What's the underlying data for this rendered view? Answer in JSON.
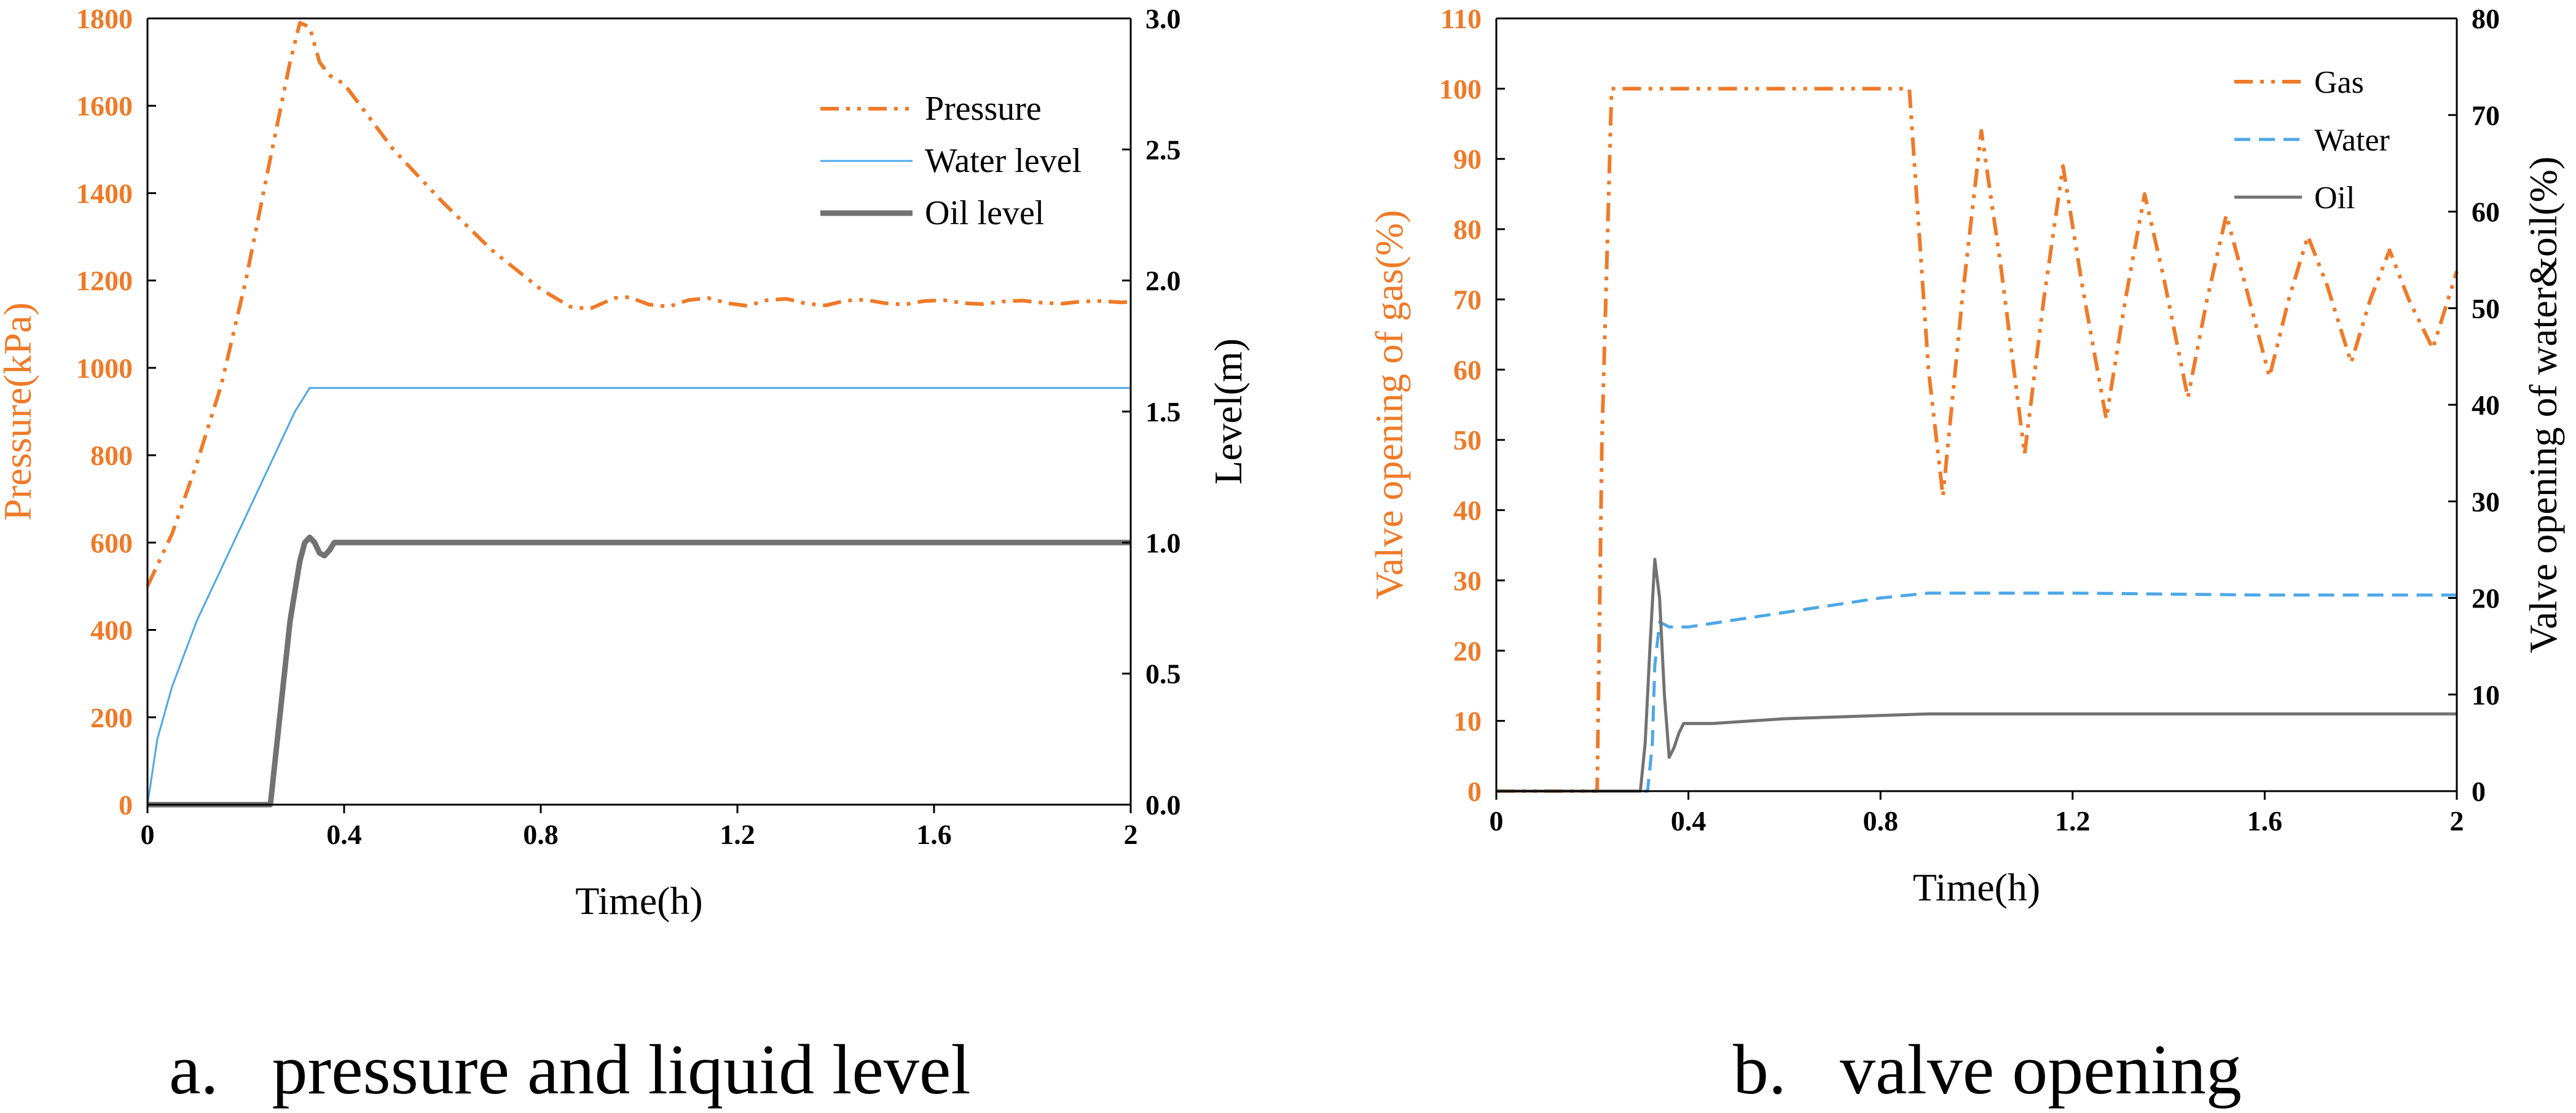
{
  "colors": {
    "orange": "#EF7A28",
    "blue": "#4DA7E8",
    "gray": "#727272",
    "axis": "#000000"
  },
  "chart_data": [
    {
      "id": "panel-a",
      "type": "line",
      "caption": "a.   pressure and liquid level",
      "xlabel": "Time(h)",
      "ylabel_left": "Pressure(kPa)",
      "ylabel_right": "Level(m)",
      "xlim": [
        0,
        2
      ],
      "ylim_left": [
        0,
        1800
      ],
      "ylim_right": [
        0,
        3.0
      ],
      "xticks": [
        0,
        0.4,
        0.8,
        1.2,
        1.6,
        2
      ],
      "xtick_labels": [
        "0",
        "0.4",
        "0.8",
        "1.2",
        "1.6",
        "2"
      ],
      "yticks_left": [
        0,
        200,
        400,
        600,
        800,
        1000,
        1200,
        1400,
        1600,
        1800
      ],
      "ytick_labels_left": [
        "0",
        "200",
        "400",
        "600",
        "800",
        "1000",
        "1200",
        "1400",
        "1600",
        "1800"
      ],
      "yticks_right": [
        0,
        0.5,
        1.0,
        1.5,
        2.0,
        2.5,
        3.0
      ],
      "ytick_labels_right": [
        "0.0",
        "0.5",
        "1.0",
        "1.5",
        "2.0",
        "2.5",
        "3.0"
      ],
      "legend_position": "top-right",
      "series": [
        {
          "name": "Pressure",
          "axis": "left",
          "color": "#EF7A28",
          "style": "dashdotdot",
          "width": 6,
          "x": [
            0,
            0.05,
            0.1,
            0.15,
            0.2,
            0.25,
            0.29,
            0.31,
            0.33,
            0.35,
            0.37,
            0.4,
            0.5,
            0.6,
            0.7,
            0.8,
            0.86,
            0.9,
            0.95,
            0.98,
            1.02,
            1.06,
            1.1,
            1.14,
            1.18,
            1.22,
            1.26,
            1.3,
            1.34,
            1.38,
            1.42,
            1.46,
            1.5,
            1.54,
            1.58,
            1.62,
            1.66,
            1.7,
            1.74,
            1.78,
            1.82,
            1.86,
            1.9,
            1.94,
            1.98,
            2.0
          ],
          "values": [
            500,
            620,
            780,
            960,
            1200,
            1480,
            1700,
            1790,
            1780,
            1700,
            1670,
            1650,
            1500,
            1380,
            1270,
            1180,
            1140,
            1135,
            1160,
            1162,
            1145,
            1140,
            1155,
            1160,
            1148,
            1142,
            1155,
            1158,
            1147,
            1143,
            1154,
            1156,
            1148,
            1145,
            1153,
            1155,
            1148,
            1146,
            1152,
            1154,
            1149,
            1147,
            1152,
            1153,
            1150,
            1151
          ]
        },
        {
          "name": "Water level",
          "axis": "right",
          "color": "#4DA7E8",
          "style": "solid",
          "width": 3,
          "x": [
            0,
            0.02,
            0.05,
            0.1,
            0.15,
            0.2,
            0.25,
            0.3,
            0.33,
            0.35,
            0.4,
            0.6,
            0.8,
            1.0,
            1.2,
            1.4,
            1.6,
            1.8,
            2.0
          ],
          "values": [
            0,
            0.25,
            0.45,
            0.7,
            0.9,
            1.1,
            1.3,
            1.5,
            1.59,
            1.59,
            1.59,
            1.59,
            1.59,
            1.59,
            1.59,
            1.59,
            1.59,
            1.59,
            1.59
          ]
        },
        {
          "name": "Oil level",
          "axis": "right",
          "color": "#727272",
          "style": "solid",
          "width": 9,
          "x": [
            0,
            0.24,
            0.25,
            0.27,
            0.29,
            0.31,
            0.32,
            0.33,
            0.34,
            0.35,
            0.36,
            0.37,
            0.38,
            0.4,
            0.5,
            0.8,
            1.2,
            1.6,
            2.0
          ],
          "values": [
            0,
            0,
            0,
            0.35,
            0.7,
            0.93,
            1.0,
            1.02,
            1.0,
            0.96,
            0.95,
            0.97,
            1.0,
            1.0,
            1.0,
            1.0,
            1.0,
            1.0,
            1.0
          ]
        }
      ]
    },
    {
      "id": "panel-b",
      "type": "line",
      "caption": "b.   valve opening",
      "xlabel": "Time(h)",
      "ylabel_left": "Valve opening of gas(%)",
      "ylabel_right": "Valve opening of water&oil(%)",
      "xlim": [
        0,
        2
      ],
      "ylim_left": [
        0,
        110
      ],
      "ylim_right": [
        0,
        80
      ],
      "xticks": [
        0,
        0.4,
        0.8,
        1.2,
        1.6,
        2
      ],
      "xtick_labels": [
        "0",
        "0.4",
        "0.8",
        "1.2",
        "1.6",
        "2"
      ],
      "yticks_left": [
        0,
        10,
        20,
        30,
        40,
        50,
        60,
        70,
        80,
        90,
        100,
        110
      ],
      "ytick_labels_left": [
        "0",
        "10",
        "20",
        "30",
        "40",
        "50",
        "60",
        "70",
        "80",
        "90",
        "100",
        "110"
      ],
      "yticks_right": [
        0,
        10,
        20,
        30,
        40,
        50,
        60,
        70,
        80
      ],
      "ytick_labels_right": [
        "0",
        "10",
        "20",
        "30",
        "40",
        "50",
        "60",
        "70",
        "80"
      ],
      "legend_position": "top-right",
      "series": [
        {
          "name": "Gas",
          "axis": "left",
          "color": "#EF7A28",
          "style": "dashdotdot",
          "width": 6,
          "x": [
            0,
            0.21,
            0.22,
            0.24,
            0.8,
            0.86,
            0.88,
            0.9,
            0.93,
            0.97,
            1.01,
            1.05,
            1.1,
            1.14,
            1.18,
            1.22,
            1.27,
            1.31,
            1.35,
            1.39,
            1.44,
            1.48,
            1.52,
            1.56,
            1.61,
            1.65,
            1.69,
            1.73,
            1.78,
            1.82,
            1.86,
            1.9,
            1.95,
            2.0
          ],
          "values": [
            0,
            0,
            50,
            100,
            100,
            100,
            80,
            60,
            42,
            70,
            94,
            75,
            48,
            70,
            89,
            72,
            53,
            70,
            85,
            73,
            56,
            70,
            82,
            72,
            59,
            70,
            79,
            72,
            61,
            70,
            77,
            70,
            63,
            74
          ]
        },
        {
          "name": "Water",
          "axis": "right",
          "color": "#4DA7E8",
          "style": "dashed",
          "width": 5,
          "x": [
            0,
            0.315,
            0.325,
            0.33,
            0.34,
            0.36,
            0.4,
            0.6,
            0.8,
            0.9,
            1.2,
            1.6,
            2.0
          ],
          "values": [
            0,
            0,
            5,
            13,
            17.5,
            17,
            17,
            18.5,
            20,
            20.5,
            20.5,
            20.3,
            20.3
          ]
        },
        {
          "name": "Oil",
          "axis": "right",
          "color": "#727272",
          "style": "solid",
          "width": 5,
          "x": [
            0,
            0.3,
            0.31,
            0.32,
            0.33,
            0.34,
            0.35,
            0.36,
            0.37,
            0.38,
            0.39,
            0.41,
            0.45,
            0.6,
            0.9,
            1.2,
            1.6,
            2.0
          ],
          "values": [
            0,
            0,
            5,
            15,
            24,
            20,
            10,
            3.5,
            4.5,
            6,
            7,
            7,
            7,
            7.5,
            8,
            8,
            8,
            8
          ]
        }
      ]
    }
  ]
}
